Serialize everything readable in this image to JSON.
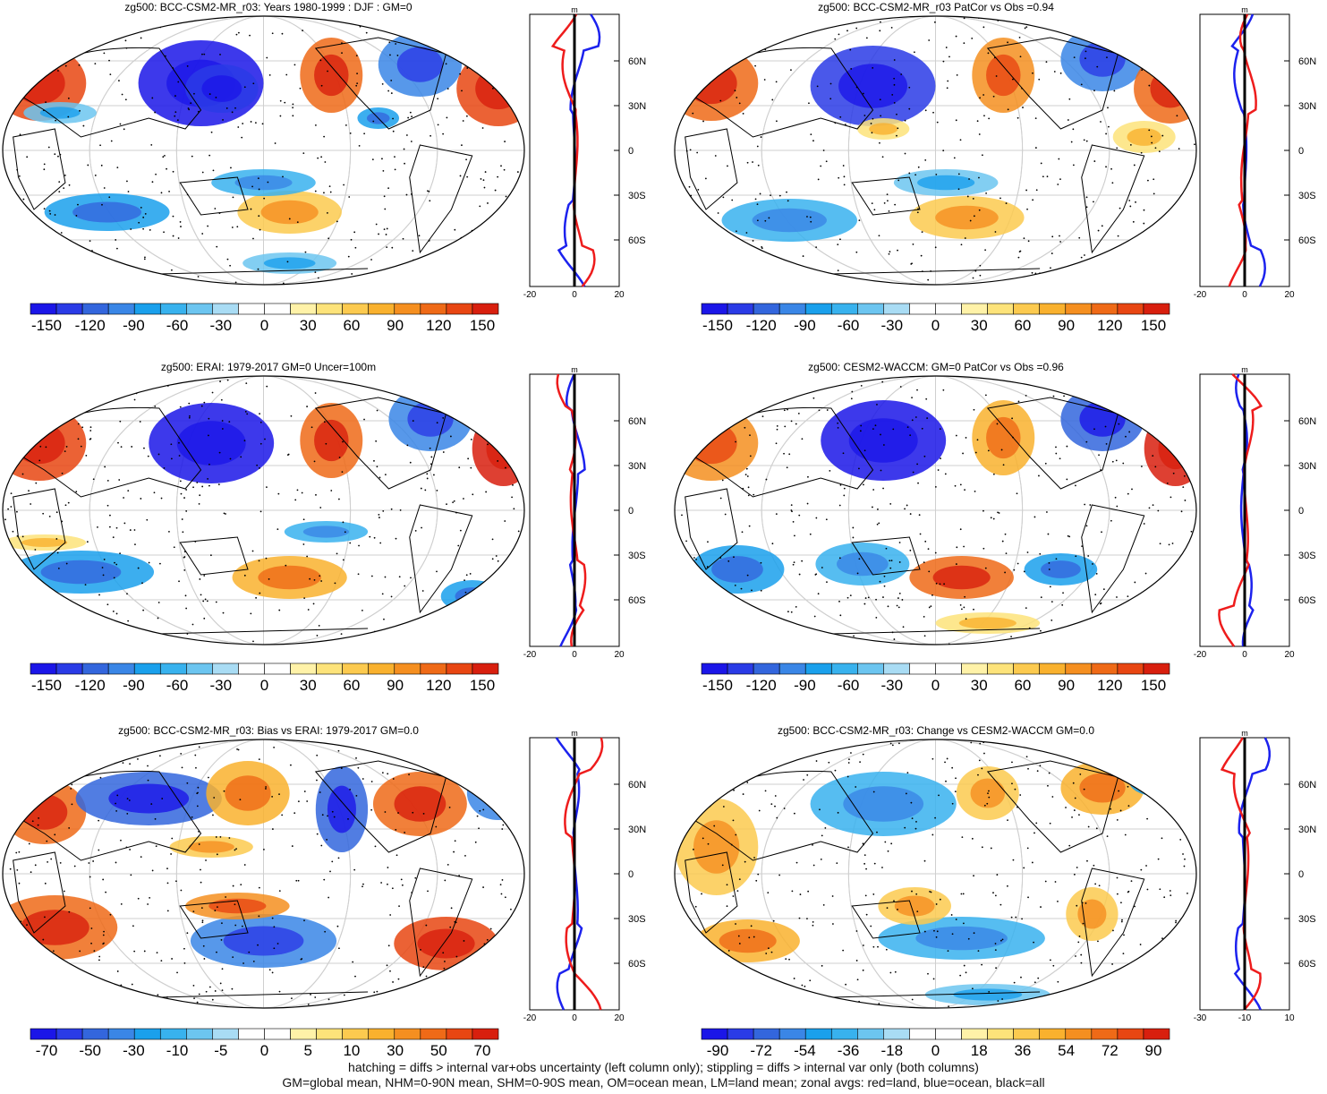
{
  "panels": [
    {
      "title": "zg500: BCC-CSM2-MR_r03: Years 1980-1999 : DJF : GM=0",
      "colorbar": [
        "-150",
        "-120",
        "-90",
        "-60",
        "-30",
        "0",
        "30",
        "60",
        "90",
        "120",
        "150"
      ],
      "zonal": {
        "unit": "m",
        "ticks": [
          "-20",
          "0",
          "20"
        ]
      }
    },
    {
      "title": "zg500: BCC-CSM2-MR_r03 PatCor vs Obs =0.94",
      "colorbar": [
        "-150",
        "-120",
        "-90",
        "-60",
        "-30",
        "0",
        "30",
        "60",
        "90",
        "120",
        "150"
      ],
      "zonal": {
        "unit": "m",
        "ticks": [
          "-20",
          "0",
          "20"
        ]
      }
    },
    {
      "title": "zg500: ERAI: 1979-2017 GM=0 Uncer=100m",
      "colorbar": [
        "-150",
        "-120",
        "-90",
        "-60",
        "-30",
        "0",
        "30",
        "60",
        "90",
        "120",
        "150"
      ],
      "zonal": {
        "unit": "m",
        "ticks": [
          "-20",
          "0",
          "20"
        ]
      }
    },
    {
      "title": "zg500: CESM2-WACCM: GM=0 PatCor vs Obs =0.96",
      "colorbar": [
        "-150",
        "-120",
        "-90",
        "-60",
        "-30",
        "0",
        "30",
        "60",
        "90",
        "120",
        "150"
      ],
      "zonal": {
        "unit": "m",
        "ticks": [
          "-20",
          "0",
          "20"
        ]
      }
    },
    {
      "title": "zg500: BCC-CSM2-MR_r03: Bias vs ERAI: 1979-2017 GM=0.0",
      "colorbar": [
        "-70",
        "-50",
        "-30",
        "-10",
        "-5",
        "0",
        "5",
        "10",
        "30",
        "50",
        "70"
      ],
      "zonal": {
        "unit": "m",
        "ticks": [
          "-20",
          "0",
          "20"
        ]
      }
    },
    {
      "title": "zg500: BCC-CSM2-MR_r03: Change vs CESM2-WACCM GM=0.0",
      "colorbar": [
        "-90",
        "-72",
        "-54",
        "-36",
        "-18",
        "0",
        "18",
        "36",
        "54",
        "72",
        "90"
      ],
      "zonal": {
        "unit": "m",
        "ticks": [
          "-30",
          "-10",
          "10"
        ]
      }
    }
  ],
  "lat_labels": [
    "60N",
    "30N",
    "0",
    "30S",
    "60S"
  ],
  "colors": {
    "palette": [
      "#1b16e8",
      "#2a3be6",
      "#3366dd",
      "#3a86e6",
      "#1aa0ec",
      "#38b2ee",
      "#6cc5f0",
      "#a9dcf4",
      "#ffffff",
      "#ffffff",
      "#fff2a8",
      "#fde37a",
      "#fcca4f",
      "#f9b12e",
      "#f58f20",
      "#ef6a17",
      "#e84612",
      "#d81f0e"
    ],
    "land_zonal": "#ee1c1c",
    "ocean_zonal": "#1c22ee",
    "all_zonal": "#000000"
  },
  "footnotes": [
    "hatching = diffs > internal var+obs uncertainty (left column only); stippling = diffs > internal var only (both columns)",
    "GM=global mean, NHM=0-90N mean, SHM=0-90S mean, OM=ocean mean, LM=land mean; zonal avgs: red=land, blue=ocean, black=all"
  ]
}
